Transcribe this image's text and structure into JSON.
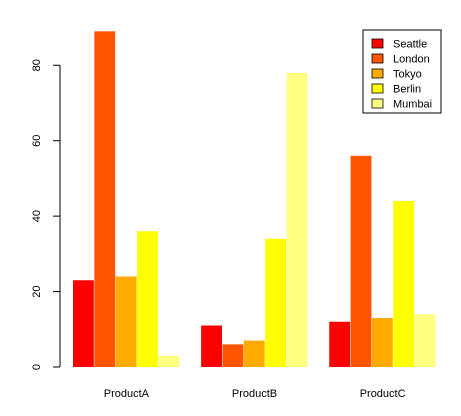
{
  "chart_data": {
    "type": "bar",
    "title": "",
    "xlabel": "",
    "ylabel": "",
    "categories": [
      "ProductA",
      "ProductB",
      "ProductC"
    ],
    "series": [
      {
        "name": "Seattle",
        "color": "#ff0000",
        "values": [
          23,
          11,
          12
        ]
      },
      {
        "name": "London",
        "color": "#ff5500",
        "values": [
          89,
          6,
          56
        ]
      },
      {
        "name": "Tokyo",
        "color": "#ffaa00",
        "values": [
          24,
          7,
          13
        ]
      },
      {
        "name": "Berlin",
        "color": "#ffff00",
        "values": [
          36,
          34,
          44
        ]
      },
      {
        "name": "Mumbai",
        "color": "#ffff80",
        "values": [
          3,
          78,
          14
        ]
      }
    ],
    "ylim": [
      0,
      92
    ],
    "yticks": [
      0,
      20,
      40,
      60,
      80
    ],
    "legend_position": "top-right",
    "grid": false
  }
}
